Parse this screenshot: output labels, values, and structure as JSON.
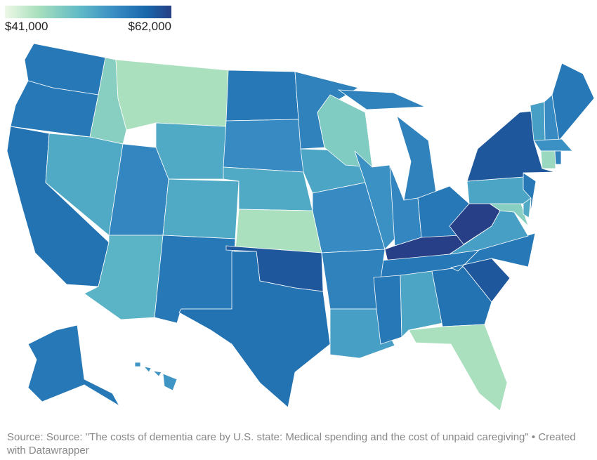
{
  "legend": {
    "min_label": "$41,000",
    "max_label": "$62,000",
    "min": 41000,
    "max": 62000,
    "colors": [
      "#eef8e6",
      "#a8dfbd",
      "#5fbac6",
      "#3a8fc4",
      "#1867ab",
      "#263f86"
    ]
  },
  "states": {
    "WA": 56000,
    "OR": 56000,
    "CA": 56500,
    "NV": 51000,
    "ID": 47000,
    "MT": 45000,
    "WY": 51000,
    "UT": 54500,
    "AZ": 50000,
    "CO": 51000,
    "NM": 56000,
    "ND": 56000,
    "SD": 54000,
    "NE": 51000,
    "KS": 45000,
    "OK": 59500,
    "TX": 56500,
    "MN": 55000,
    "IA": 51500,
    "MO": 54000,
    "WI": 47500,
    "IL": 53500,
    "MI": 55000,
    "IN": 54500,
    "OH": 56000,
    "KY": 62000,
    "WV": 62000,
    "TN": 56000,
    "AR": 55000,
    "LA": 52000,
    "MS": 56000,
    "AL": 51500,
    "GA": 56500,
    "FL": 45000,
    "SC": 59500,
    "NC": 56000,
    "VA": 52000,
    "MD": 47000,
    "DE": 51000,
    "PA": 51500,
    "NJ": 56000,
    "NY": 59500,
    "VT": 52000,
    "NH": 54000,
    "ME": 56000,
    "MA": 53500,
    "CT": 46000,
    "RI": 55000,
    "AK": 56000,
    "HI": 53000
  },
  "footer": {
    "source": "Source: Source: \"The costs of dementia care by U.S. state: Medical spending and the cost of unpaid caregiving\" • Created with Datawrapper"
  }
}
